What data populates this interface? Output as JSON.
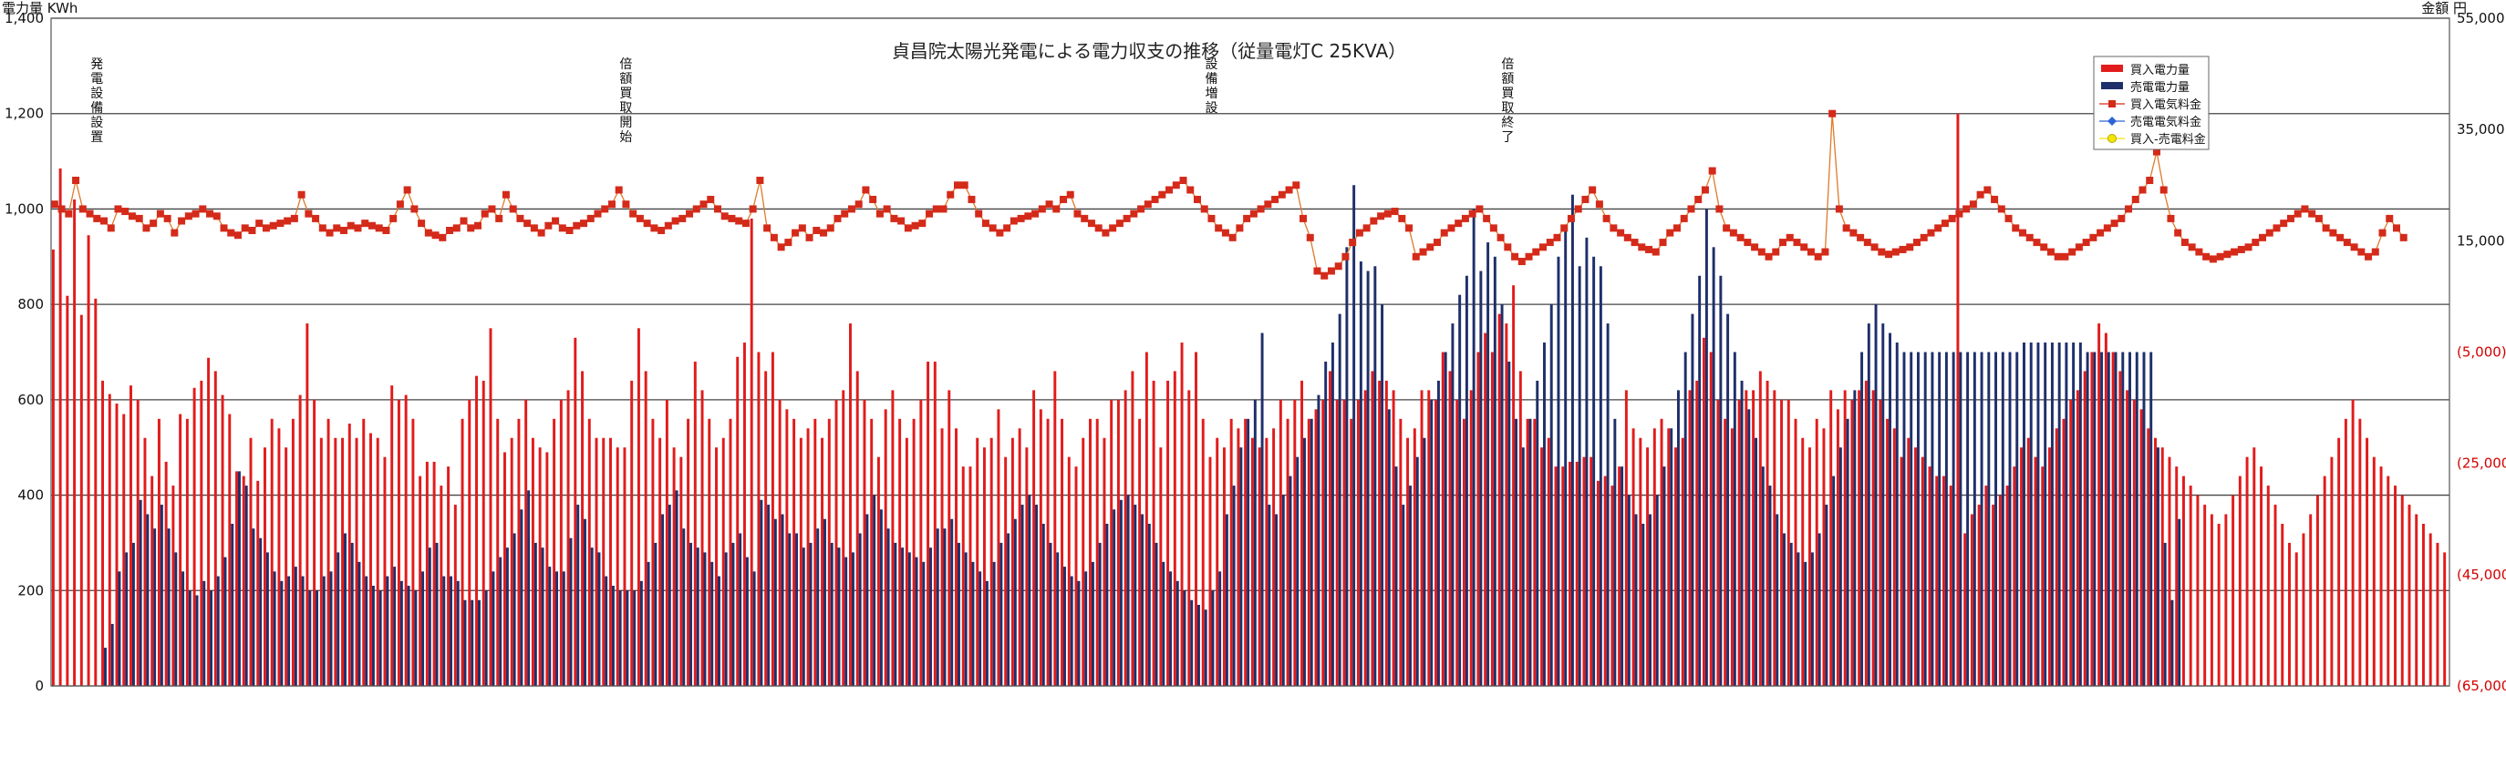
{
  "chart_data": {
    "type": "bar+line",
    "title": "貞昌院太陽光発電による電力収支の推移（従量電灯C 25KVA）",
    "ylabel_left": "電力量 KWh",
    "ylabel_right": "金額 円",
    "ylim_left": [
      0,
      1400
    ],
    "left_ticks": [
      "0",
      "200",
      "400",
      "600",
      "800",
      "1,000",
      "1,200",
      "1,400"
    ],
    "ylim_right": [
      -65000,
      55000
    ],
    "right_ticks": [
      "(65,000)",
      "(45,000)",
      "(25,000)",
      "(5,000)",
      "15,000",
      "35,000",
      "55,000"
    ],
    "grid": true,
    "legend_position": "top-right",
    "legend": [
      "買入電力量",
      "売電電力量",
      "買入電気料金",
      "売電電気料金",
      "買入-売電料金"
    ],
    "colors": {
      "buy_kwh": "#e21b1b",
      "sell_kwh": "#1f2f6b",
      "buy_cost": "#d42a1a",
      "sell_cost": "#2f64d8",
      "net": "#f5e400"
    },
    "annotations": [
      {
        "text": "発電設備設置",
        "month_index": 6
      },
      {
        "text": "倍額買取開始",
        "month_index": 81
      },
      {
        "text": "設備増設",
        "month_index": 164
      },
      {
        "text": "倍額買取終了",
        "month_index": 206
      }
    ],
    "months": 264,
    "buy_kwh": [
      915,
      1085,
      818,
      1020,
      778,
      945,
      812,
      640,
      612,
      592,
      570,
      630,
      600,
      520,
      440,
      560,
      470,
      420,
      570,
      560,
      625,
      640,
      688,
      660,
      610,
      570,
      450,
      440,
      520,
      430,
      500,
      560,
      540,
      500,
      560,
      610,
      760,
      600,
      520,
      560,
      520,
      520,
      550,
      520,
      560,
      530,
      520,
      480,
      630,
      600,
      610,
      560,
      440,
      470,
      470,
      420,
      460,
      380,
      560,
      600,
      650,
      640,
      750,
      560,
      490,
      520,
      560,
      600,
      520,
      500,
      490,
      560,
      600,
      620,
      730,
      660,
      560,
      520,
      520,
      520,
      500,
      500,
      640,
      750,
      660,
      560,
      520,
      600,
      500,
      480,
      560,
      680,
      620,
      560,
      500,
      520,
      560,
      690,
      720,
      980,
      700,
      660,
      700,
      600,
      580,
      560,
      520,
      540,
      560,
      520,
      560,
      600,
      620,
      760,
      660,
      600,
      560,
      480,
      580,
      620,
      560,
      520,
      560,
      600,
      680,
      680,
      540,
      620,
      540,
      460,
      460,
      520,
      500,
      520,
      580,
      480,
      520,
      540,
      500,
      620,
      580,
      560,
      660,
      560,
      480,
      460,
      520,
      560,
      560,
      520,
      600,
      600,
      620,
      660,
      560,
      700,
      640,
      500,
      640,
      660,
      720,
      620,
      700,
      560,
      480,
      520,
      500,
      560,
      540,
      560,
      520,
      500,
      520,
      540,
      600,
      560,
      600,
      640,
      560,
      580,
      600,
      660,
      600,
      600,
      560,
      600,
      620,
      660,
      640,
      640,
      620,
      560,
      520,
      540,
      620,
      620,
      600,
      700,
      660,
      600,
      560,
      620,
      700,
      740,
      700,
      780,
      760,
      840,
      660,
      560,
      560,
      500,
      520,
      460,
      460,
      470,
      470,
      480,
      480,
      430,
      440,
      420,
      460,
      620,
      540,
      520,
      500,
      540,
      560,
      540,
      500,
      520,
      620,
      640,
      730,
      700,
      600,
      560,
      540,
      600,
      620,
      620,
      660,
      640,
      620,
      600,
      600,
      560,
      520,
      500,
      560,
      540,
      620,
      580,
      620,
      600,
      620,
      640,
      620,
      600,
      560,
      540,
      480,
      520,
      500,
      480,
      460,
      440,
      440,
      420,
      1200,
      320,
      360,
      380,
      420,
      380,
      400,
      420,
      460,
      500,
      520,
      480,
      460,
      500,
      540,
      560,
      600,
      620,
      660,
      700,
      760,
      740,
      700,
      660,
      620,
      600,
      580,
      540,
      520,
      500,
      480,
      460,
      440,
      420,
      400,
      380,
      360,
      340,
      360,
      400,
      440,
      480,
      500,
      460,
      420,
      380,
      340,
      300,
      280,
      320,
      360,
      400,
      440,
      480,
      520,
      560,
      600,
      560,
      520,
      480,
      460,
      440,
      420,
      400,
      380,
      360,
      340,
      320,
      300,
      280
    ],
    "sell_kwh": [
      0,
      0,
      0,
      0,
      0,
      0,
      0,
      80,
      130,
      240,
      280,
      300,
      390,
      360,
      330,
      380,
      330,
      280,
      240,
      200,
      190,
      220,
      200,
      230,
      270,
      340,
      450,
      420,
      330,
      310,
      280,
      240,
      220,
      230,
      250,
      230,
      200,
      200,
      230,
      240,
      280,
      320,
      300,
      260,
      230,
      210,
      200,
      230,
      250,
      220,
      210,
      200,
      240,
      290,
      300,
      230,
      230,
      220,
      180,
      180,
      180,
      200,
      240,
      270,
      290,
      320,
      370,
      410,
      300,
      290,
      250,
      240,
      240,
      310,
      380,
      350,
      290,
      280,
      230,
      210,
      200,
      200,
      200,
      220,
      260,
      300,
      360,
      380,
      410,
      330,
      300,
      290,
      280,
      260,
      230,
      280,
      300,
      320,
      270,
      240,
      390,
      380,
      350,
      360,
      320,
      320,
      290,
      300,
      330,
      350,
      300,
      290,
      270,
      280,
      320,
      360,
      400,
      370,
      330,
      300,
      290,
      280,
      270,
      260,
      290,
      330,
      330,
      350,
      300,
      280,
      260,
      240,
      220,
      260,
      300,
      320,
      350,
      380,
      400,
      380,
      340,
      300,
      280,
      250,
      230,
      220,
      240,
      260,
      300,
      340,
      370,
      390,
      400,
      380,
      360,
      340,
      300,
      260,
      240,
      220,
      200,
      180,
      170,
      160,
      200,
      240,
      360,
      420,
      500,
      560,
      600,
      740,
      380,
      360,
      400,
      440,
      480,
      520,
      560,
      610,
      680,
      720,
      780,
      920,
      1050,
      890,
      870,
      880,
      800,
      580,
      460,
      380,
      420,
      480,
      520,
      600,
      640,
      700,
      760,
      820,
      860,
      1000,
      870,
      930,
      900,
      800,
      680,
      560,
      500,
      560,
      640,
      720,
      800,
      900,
      960,
      1030,
      880,
      940,
      900,
      880,
      760,
      560,
      460,
      400,
      360,
      340,
      360,
      400,
      460,
      540,
      620,
      700,
      780,
      860,
      1000,
      920,
      860,
      780,
      700,
      640,
      580,
      520,
      460,
      420,
      360,
      320,
      300,
      280,
      260,
      280,
      320,
      380,
      440,
      500,
      560,
      620,
      700,
      760,
      800,
      760,
      740,
      720,
      700,
      700,
      700,
      700,
      700,
      700,
      700,
      700,
      700,
      700,
      700,
      700,
      700,
      700,
      700,
      700,
      700,
      720,
      720,
      720,
      720,
      720,
      720,
      720,
      720,
      720,
      700,
      700,
      700,
      700,
      700,
      700,
      700,
      700,
      700,
      700,
      500,
      300,
      180,
      350
    ],
    "buy_cost": [
      1010,
      1000,
      990,
      1060,
      1000,
      990,
      980,
      975,
      960,
      1000,
      995,
      985,
      980,
      960,
      970,
      990,
      980,
      950,
      975,
      985,
      990,
      1000,
      990,
      985,
      960,
      950,
      945,
      960,
      955,
      970,
      960,
      965,
      970,
      975,
      980,
      1030,
      990,
      980,
      960,
      950,
      960,
      955,
      965,
      960,
      970,
      965,
      960,
      955,
      980,
      1010,
      1040,
      1000,
      970,
      950,
      945,
      940,
      955,
      960,
      975,
      960,
      965,
      990,
      1000,
      980,
      1030,
      1000,
      980,
      970,
      960,
      950,
      965,
      975,
      960,
      955,
      965,
      970,
      980,
      990,
      1000,
      1010,
      1040,
      1010,
      990,
      980,
      970,
      960,
      955,
      965,
      975,
      980,
      990,
      1000,
      1010,
      1020,
      1000,
      985,
      980,
      975,
      970,
      1000,
      1060,
      960,
      940,
      920,
      930,
      950,
      960,
      940,
      955,
      950,
      960,
      980,
      990,
      1000,
      1010,
      1040,
      1020,
      990,
      1000,
      980,
      975,
      960,
      965,
      970,
      990,
      1000,
      1000,
      1030,
      1050,
      1050,
      1020,
      990,
      970,
      960,
      950,
      960,
      975,
      980,
      985,
      990,
      1000,
      1010,
      1000,
      1020,
      1030,
      990,
      980,
      970,
      960,
      950,
      960,
      970,
      980,
      990,
      1000,
      1010,
      1020,
      1030,
      1040,
      1050,
      1060,
      1040,
      1020,
      1000,
      980,
      960,
      950,
      940,
      960,
      980,
      990,
      1000,
      1010,
      1020,
      1030,
      1040,
      1050,
      980,
      940,
      870,
      860,
      870,
      880,
      900,
      930,
      950,
      960,
      975,
      985,
      990,
      995,
      980,
      960,
      900,
      910,
      920,
      930,
      950,
      960,
      970,
      980,
      990,
      1000,
      980,
      960,
      940,
      920,
      900,
      890,
      900,
      910,
      920,
      930,
      940,
      960,
      980,
      1000,
      1020,
      1040,
      1010,
      980,
      960,
      950,
      940,
      930,
      920,
      915,
      910,
      930,
      950,
      960,
      980,
      1000,
      1020,
      1040,
      1080,
      1000,
      960,
      950,
      940,
      930,
      920,
      910,
      900,
      910,
      930,
      940,
      930,
      920,
      910,
      900,
      910,
      1200,
      1000,
      960,
      950,
      940,
      930,
      920,
      910,
      905,
      910,
      915,
      920,
      930,
      940,
      950,
      960,
      970,
      980,
      990,
      1000,
      1010,
      1030,
      1040,
      1020,
      1000,
      980,
      960,
      950,
      940,
      930,
      920,
      910,
      900,
      900,
      910,
      920,
      930,
      940,
      950,
      960,
      970,
      980,
      1000,
      1020,
      1040,
      1060,
      1120,
      1040,
      980,
      950,
      930,
      920,
      910,
      900,
      895,
      900,
      905,
      910,
      915,
      920,
      930,
      940,
      950,
      960,
      970,
      980,
      990,
      1000,
      990,
      980,
      960,
      950,
      940,
      930,
      920,
      910,
      900,
      910,
      950,
      980,
      960,
      940
    ],
    "sell_cost": [
      0,
      0,
      0,
      0,
      0,
      0,
      0,
      0,
      0,
      0,
      0,
      0,
      0,
      0,
      0,
      0,
      0,
      0,
      0,
      0,
      0,
      0,
      0,
      0,
      0,
      0,
      0,
      0,
      0,
      0,
      0,
      0,
      0,
      0,
      0,
      0,
      0,
      0,
      0,
      0,
      0,
      0,
      0,
      0,
      0,
      0,
      0,
      0,
      0,
      0,
      0,
      0,
      0,
      0,
      0,
      0,
      0,
      0,
      0,
      0,
      0,
      0,
      0,
      0,
      0,
      0,
      0,
      0,
      0,
      0,
      0,
      0,
      0,
      0,
      0,
      0,
      0,
      0,
      0,
      0,
      0,
      0,
      0,
      0,
      0,
      0,
      0,
      0,
      0,
      0,
      0,
      0,
      0,
      0,
      0,
      0,
      0,
      0,
      0,
      0,
      0,
      0,
      0,
      0,
      0,
      0,
      0,
      0,
      0,
      0,
      0,
      0,
      0,
      0,
      0,
      0,
      0,
      0,
      0,
      0,
      0,
      0,
      0,
      0,
      0,
      0,
      0,
      0,
      0,
      0,
      0,
      0,
      0,
      0,
      0,
      0,
      0,
      0,
      0,
      0,
      0,
      0,
      0,
      0,
      0,
      0,
      0,
      0,
      0,
      0,
      0,
      0,
      0,
      0,
      0,
      0,
      0,
      0,
      0,
      0,
      0,
      0,
      0,
      0,
      0,
      0,
      0,
      0,
      0,
      0,
      0,
      0,
      0,
      0,
      0,
      0,
      0,
      0,
      0,
      0,
      0,
      0,
      0,
      0,
      0,
      0,
      0,
      0,
      0,
      0,
      0,
      0,
      0,
      0,
      0,
      0,
      0,
      0,
      0,
      0,
      0,
      0,
      0,
      0,
      0,
      0,
      0,
      0,
      0,
      0,
      0,
      0,
      0,
      0,
      0,
      0,
      0,
      0,
      0,
      0,
      0,
      0,
      0,
      0,
      0,
      0,
      0,
      0,
      0,
      0,
      0,
      0,
      0,
      0,
      0,
      0,
      0,
      0,
      0,
      0,
      0,
      0,
      0,
      0,
      0,
      0,
      0,
      0,
      0,
      0,
      0,
      0,
      0,
      0,
      0,
      0,
      0,
      0,
      0,
      0,
      0,
      0,
      0,
      0,
      0,
      0,
      0,
      0,
      0,
      0,
      0,
      0,
      0,
      0,
      0,
      0,
      0,
      0,
      0,
      0,
      0,
      0,
      0,
      0,
      0,
      0,
      0,
      0,
      0,
      0,
      0,
      0,
      0,
      0,
      0,
      0,
      0,
      0,
      0,
      0,
      0,
      0,
      0,
      0,
      0,
      0,
      0,
      0,
      0,
      0,
      0,
      0,
      0,
      0,
      0,
      0,
      0,
      0,
      0,
      0,
      0,
      0,
      0,
      0,
      0,
      0,
      0,
      0,
      0,
      0,
      0,
      0,
      0,
      0,
      0,
      0,
      0,
      0,
      0,
      0,
      0,
      0,
      0,
      0
    ],
    "net": [
      0
    ]
  }
}
